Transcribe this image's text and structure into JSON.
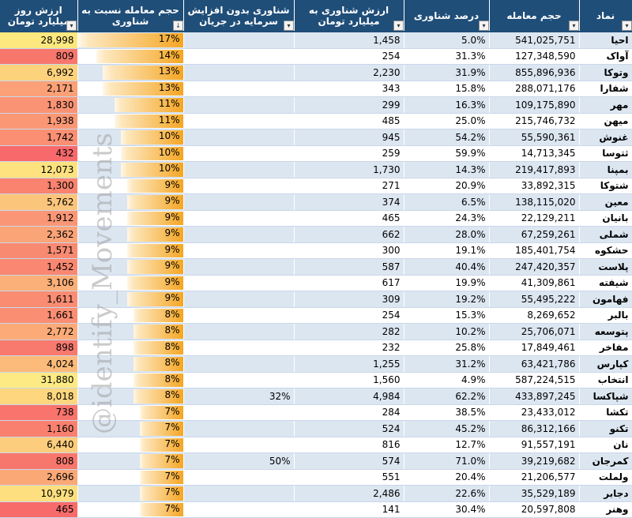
{
  "headers": {
    "symbol": "نماد",
    "volume": "حجم معامله",
    "float_pct": "درصد شناوری",
    "float_value": "ارزش شناوری به میلیارد تومان",
    "float_no_cap": "شناوری بدون افزایش سرمایه در جریان",
    "volume_ratio": "حجم معامله نسبت به شناوری",
    "day_value": "ارزش روز میلیارد تومان"
  },
  "watermark": "@identify_Movements",
  "colors": {
    "header_bg": "#1f4e79",
    "row_alt": "#dce6f1",
    "bar_fill": "#f5a623",
    "heat_low": "#f8696b",
    "heat_mid": "#ffeb84"
  },
  "rows": [
    {
      "symbol": "احیا",
      "volume": "541,025,751",
      "float_pct": "5.0%",
      "float_value": "1,458",
      "float_no_cap": "",
      "ratio": "17%",
      "ratio_val": 17,
      "day_value": "28,998",
      "heat": "#fde87f"
    },
    {
      "symbol": "آواک",
      "volume": "127,348,590",
      "float_pct": "31.3%",
      "float_value": "254",
      "float_no_cap": "",
      "ratio": "14%",
      "ratio_val": 14,
      "day_value": "809",
      "heat": "#f8776c"
    },
    {
      "symbol": "وتوکا",
      "volume": "855,896,936",
      "float_pct": "31.9%",
      "float_value": "2,230",
      "float_no_cap": "",
      "ratio": "13%",
      "ratio_val": 13,
      "day_value": "6,992",
      "heat": "#fdd27d"
    },
    {
      "symbol": "شفارا",
      "volume": "288,071,176",
      "float_pct": "15.8%",
      "float_value": "343",
      "float_no_cap": "",
      "ratio": "13%",
      "ratio_val": 13,
      "day_value": "2,171",
      "heat": "#fba077"
    },
    {
      "symbol": "مهر",
      "volume": "109,175,890",
      "float_pct": "16.3%",
      "float_value": "299",
      "float_no_cap": "",
      "ratio": "11%",
      "ratio_val": 11,
      "day_value": "1,830",
      "heat": "#fa9374"
    },
    {
      "symbol": "میهن",
      "volume": "215,746,732",
      "float_pct": "25.0%",
      "float_value": "485",
      "float_no_cap": "",
      "ratio": "11%",
      "ratio_val": 11,
      "day_value": "1,938",
      "heat": "#fa9775"
    },
    {
      "symbol": "غنوش",
      "volume": "55,590,361",
      "float_pct": "54.2%",
      "float_value": "945",
      "float_no_cap": "",
      "ratio": "10%",
      "ratio_val": 10,
      "day_value": "1,742",
      "heat": "#fa8f73"
    },
    {
      "symbol": "ثتوسا",
      "volume": "14,713,345",
      "float_pct": "59.9%",
      "float_value": "259",
      "float_no_cap": "",
      "ratio": "10%",
      "ratio_val": 10,
      "day_value": "432",
      "heat": "#f8696b"
    },
    {
      "symbol": "بمپنا",
      "volume": "219,417,893",
      "float_pct": "14.3%",
      "float_value": "1,730",
      "float_no_cap": "",
      "ratio": "10%",
      "ratio_val": 10,
      "day_value": "12,073",
      "heat": "#fde27f"
    },
    {
      "symbol": "شتوکا",
      "volume": "33,892,315",
      "float_pct": "20.9%",
      "float_value": "271",
      "float_no_cap": "",
      "ratio": "9%",
      "ratio_val": 9,
      "day_value": "1,300",
      "heat": "#f9836f"
    },
    {
      "symbol": "معین",
      "volume": "138,115,020",
      "float_pct": "6.5%",
      "float_value": "374",
      "float_no_cap": "",
      "ratio": "9%",
      "ratio_val": 9,
      "day_value": "5,762",
      "heat": "#fcc57c"
    },
    {
      "symbol": "بانیان",
      "volume": "22,129,211",
      "float_pct": "24.3%",
      "float_value": "465",
      "float_no_cap": "",
      "ratio": "9%",
      "ratio_val": 9,
      "day_value": "1,912",
      "heat": "#fa9675"
    },
    {
      "symbol": "شملی",
      "volume": "67,259,261",
      "float_pct": "28.0%",
      "float_value": "662",
      "float_no_cap": "",
      "ratio": "9%",
      "ratio_val": 9,
      "day_value": "2,362",
      "heat": "#fba478"
    },
    {
      "symbol": "حشکوه",
      "volume": "185,401,754",
      "float_pct": "19.1%",
      "float_value": "300",
      "float_no_cap": "",
      "ratio": "9%",
      "ratio_val": 9,
      "day_value": "1,571",
      "heat": "#f98a72"
    },
    {
      "symbol": "پلاست",
      "volume": "247,420,357",
      "float_pct": "40.4%",
      "float_value": "587",
      "float_no_cap": "",
      "ratio": "9%",
      "ratio_val": 9,
      "day_value": "1,452",
      "heat": "#f98771"
    },
    {
      "symbol": "شیفته",
      "volume": "41,309,861",
      "float_pct": "19.9%",
      "float_value": "617",
      "float_no_cap": "",
      "ratio": "9%",
      "ratio_val": 9,
      "day_value": "3,106",
      "heat": "#fbaf79"
    },
    {
      "symbol": "فهامون",
      "volume": "55,495,222",
      "float_pct": "19.2%",
      "float_value": "309",
      "float_no_cap": "",
      "ratio": "9%",
      "ratio_val": 9,
      "day_value": "1,611",
      "heat": "#fa8c72"
    },
    {
      "symbol": "بالبر",
      "volume": "8,269,652",
      "float_pct": "15.3%",
      "float_value": "254",
      "float_no_cap": "",
      "ratio": "8%",
      "ratio_val": 8,
      "day_value": "1,661",
      "heat": "#fa8e73"
    },
    {
      "symbol": "پتوسعه",
      "volume": "25,706,071",
      "float_pct": "10.2%",
      "float_value": "282",
      "float_no_cap": "",
      "ratio": "8%",
      "ratio_val": 8,
      "day_value": "2,772",
      "heat": "#fbaa78"
    },
    {
      "symbol": "مفاخر",
      "volume": "17,849,461",
      "float_pct": "25.8%",
      "float_value": "232",
      "float_no_cap": "",
      "ratio": "8%",
      "ratio_val": 8,
      "day_value": "898",
      "heat": "#f8796d"
    },
    {
      "symbol": "کپارس",
      "volume": "63,421,786",
      "float_pct": "31.2%",
      "float_value": "1,255",
      "float_no_cap": "",
      "ratio": "8%",
      "ratio_val": 8,
      "day_value": "4,024",
      "heat": "#fcbb7a"
    },
    {
      "symbol": "انتخاب",
      "volume": "587,224,515",
      "float_pct": "4.9%",
      "float_value": "1,560",
      "float_no_cap": "",
      "ratio": "8%",
      "ratio_val": 8,
      "day_value": "31,880",
      "heat": "#feea84"
    },
    {
      "symbol": "شپاکسا",
      "volume": "433,897,245",
      "float_pct": "62.2%",
      "float_value": "4,984",
      "float_no_cap": "32%",
      "ratio": "8%",
      "ratio_val": 8,
      "day_value": "8,018",
      "heat": "#fdd67e"
    },
    {
      "symbol": "تکشا",
      "volume": "23,433,012",
      "float_pct": "38.5%",
      "float_value": "284",
      "float_no_cap": "",
      "ratio": "7%",
      "ratio_val": 7,
      "day_value": "738",
      "heat": "#f8746c"
    },
    {
      "symbol": "تکنو",
      "volume": "86,312,166",
      "float_pct": "45.2%",
      "float_value": "524",
      "float_no_cap": "",
      "ratio": "7%",
      "ratio_val": 7,
      "day_value": "1,160",
      "heat": "#f9806f"
    },
    {
      "symbol": "نان",
      "volume": "91,557,191",
      "float_pct": "12.7%",
      "float_value": "816",
      "float_no_cap": "",
      "ratio": "7%",
      "ratio_val": 7,
      "day_value": "6,440",
      "heat": "#fccd7c"
    },
    {
      "symbol": "کمرجان",
      "volume": "39,219,682",
      "float_pct": "71.0%",
      "float_value": "574",
      "float_no_cap": "50%",
      "ratio": "7%",
      "ratio_val": 7,
      "day_value": "808",
      "heat": "#f8776c"
    },
    {
      "symbol": "ولملت",
      "volume": "21,206,577",
      "float_pct": "20.4%",
      "float_value": "551",
      "float_no_cap": "",
      "ratio": "7%",
      "ratio_val": 7,
      "day_value": "2,696",
      "heat": "#fba877"
    },
    {
      "symbol": "دجابر",
      "volume": "35,529,189",
      "float_pct": "22.6%",
      "float_value": "2,486",
      "float_no_cap": "",
      "ratio": "7%",
      "ratio_val": 7,
      "day_value": "10,979",
      "heat": "#fddf7f"
    },
    {
      "symbol": "وهنر",
      "volume": "20,597,808",
      "float_pct": "30.4%",
      "float_value": "141",
      "float_no_cap": "",
      "ratio": "7%",
      "ratio_val": 7,
      "day_value": "465",
      "heat": "#f86b6b"
    }
  ]
}
